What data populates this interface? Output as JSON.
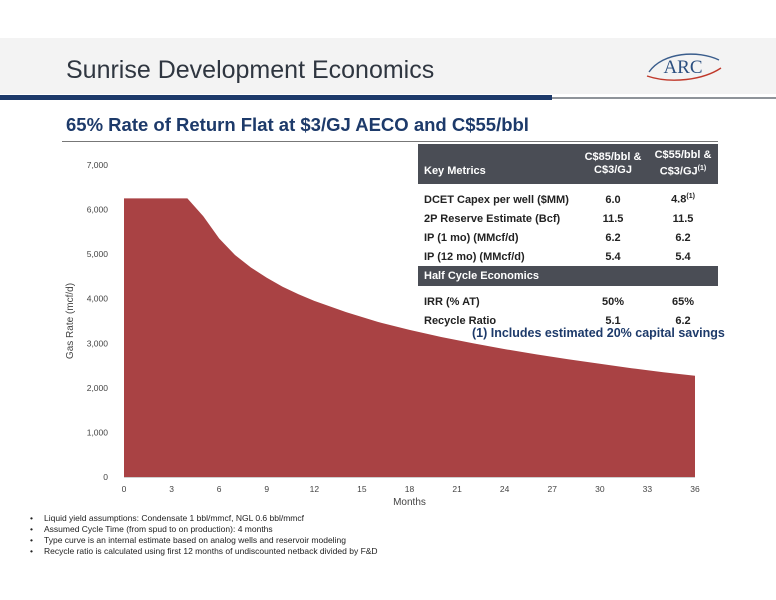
{
  "header": {
    "title": "Sunrise Development Economics",
    "logo_text": "ARC",
    "subtitle": "65% Rate of Return Flat at $3/GJ AECO and C$55/bbl"
  },
  "chart_data": {
    "type": "area",
    "xlabel": "Months",
    "ylabel": "Gas Rate (mcf/d)",
    "xlim": [
      0,
      36
    ],
    "ylim": [
      0,
      7000
    ],
    "x_ticks": [
      "0",
      "3",
      "6",
      "9",
      "12",
      "15",
      "18",
      "21",
      "24",
      "27",
      "30",
      "33",
      "36"
    ],
    "y_ticks": [
      "0",
      "1,000",
      "2,000",
      "3,000",
      "4,000",
      "5,000",
      "6,000",
      "7,000"
    ],
    "grid": false,
    "series": [
      {
        "color": "#a94244",
        "x": [
          0,
          1,
          2,
          3,
          4,
          5,
          6,
          7,
          8,
          9,
          10,
          11,
          12,
          14,
          16,
          18,
          20,
          22,
          24,
          26,
          28,
          30,
          32,
          34,
          36
        ],
        "y": [
          6250,
          6250,
          6250,
          6250,
          6250,
          5850,
          5350,
          4980,
          4700,
          4470,
          4270,
          4100,
          3950,
          3700,
          3480,
          3300,
          3140,
          3000,
          2870,
          2750,
          2640,
          2540,
          2440,
          2350,
          2270
        ]
      }
    ]
  },
  "metrics_table": {
    "header": [
      "Key Metrics",
      "C$85/bbl & C$3/GJ",
      "C$55/bbl & C$3/GJ"
    ],
    "header_col2_sup": "(1)",
    "rows": [
      {
        "label": "DCET Capex per well ($MM)",
        "a": "6.0",
        "b": "4.8",
        "b_sup": "(1)"
      },
      {
        "label": "2P Reserve Estimate (Bcf)",
        "a": "11.5",
        "b": "11.5"
      },
      {
        "label": "IP (1 mo) (MMcf/d)",
        "a": "6.2",
        "b": "6.2"
      },
      {
        "label": "IP (12 mo) (MMcf/d)",
        "a": "5.4",
        "b": "5.4"
      }
    ],
    "section_label": "Half Cycle Economics",
    "section_rows": [
      {
        "label": "IRR (% AT)",
        "a": "50%",
        "b": "65%"
      },
      {
        "label": "Recycle Ratio",
        "a": "5.1",
        "b": "6.2"
      }
    ]
  },
  "footnote": "(1) Includes estimated 20% capital savings",
  "bullets": [
    "Liquid yield assumptions:  Condensate  1 bbl/mmcf, NGL  0.6 bbl/mmcf",
    "Assumed Cycle Time (from spud to on production):  4 months",
    "Type curve is an internal estimate based on analog wells and reservoir modeling",
    "Recycle ratio is calculated using first 12 months of undiscounted netback divided by F&D"
  ],
  "colors": {
    "navy": "#1d3a6a",
    "area_red": "#a94244",
    "table_header": "#4a4d55"
  }
}
